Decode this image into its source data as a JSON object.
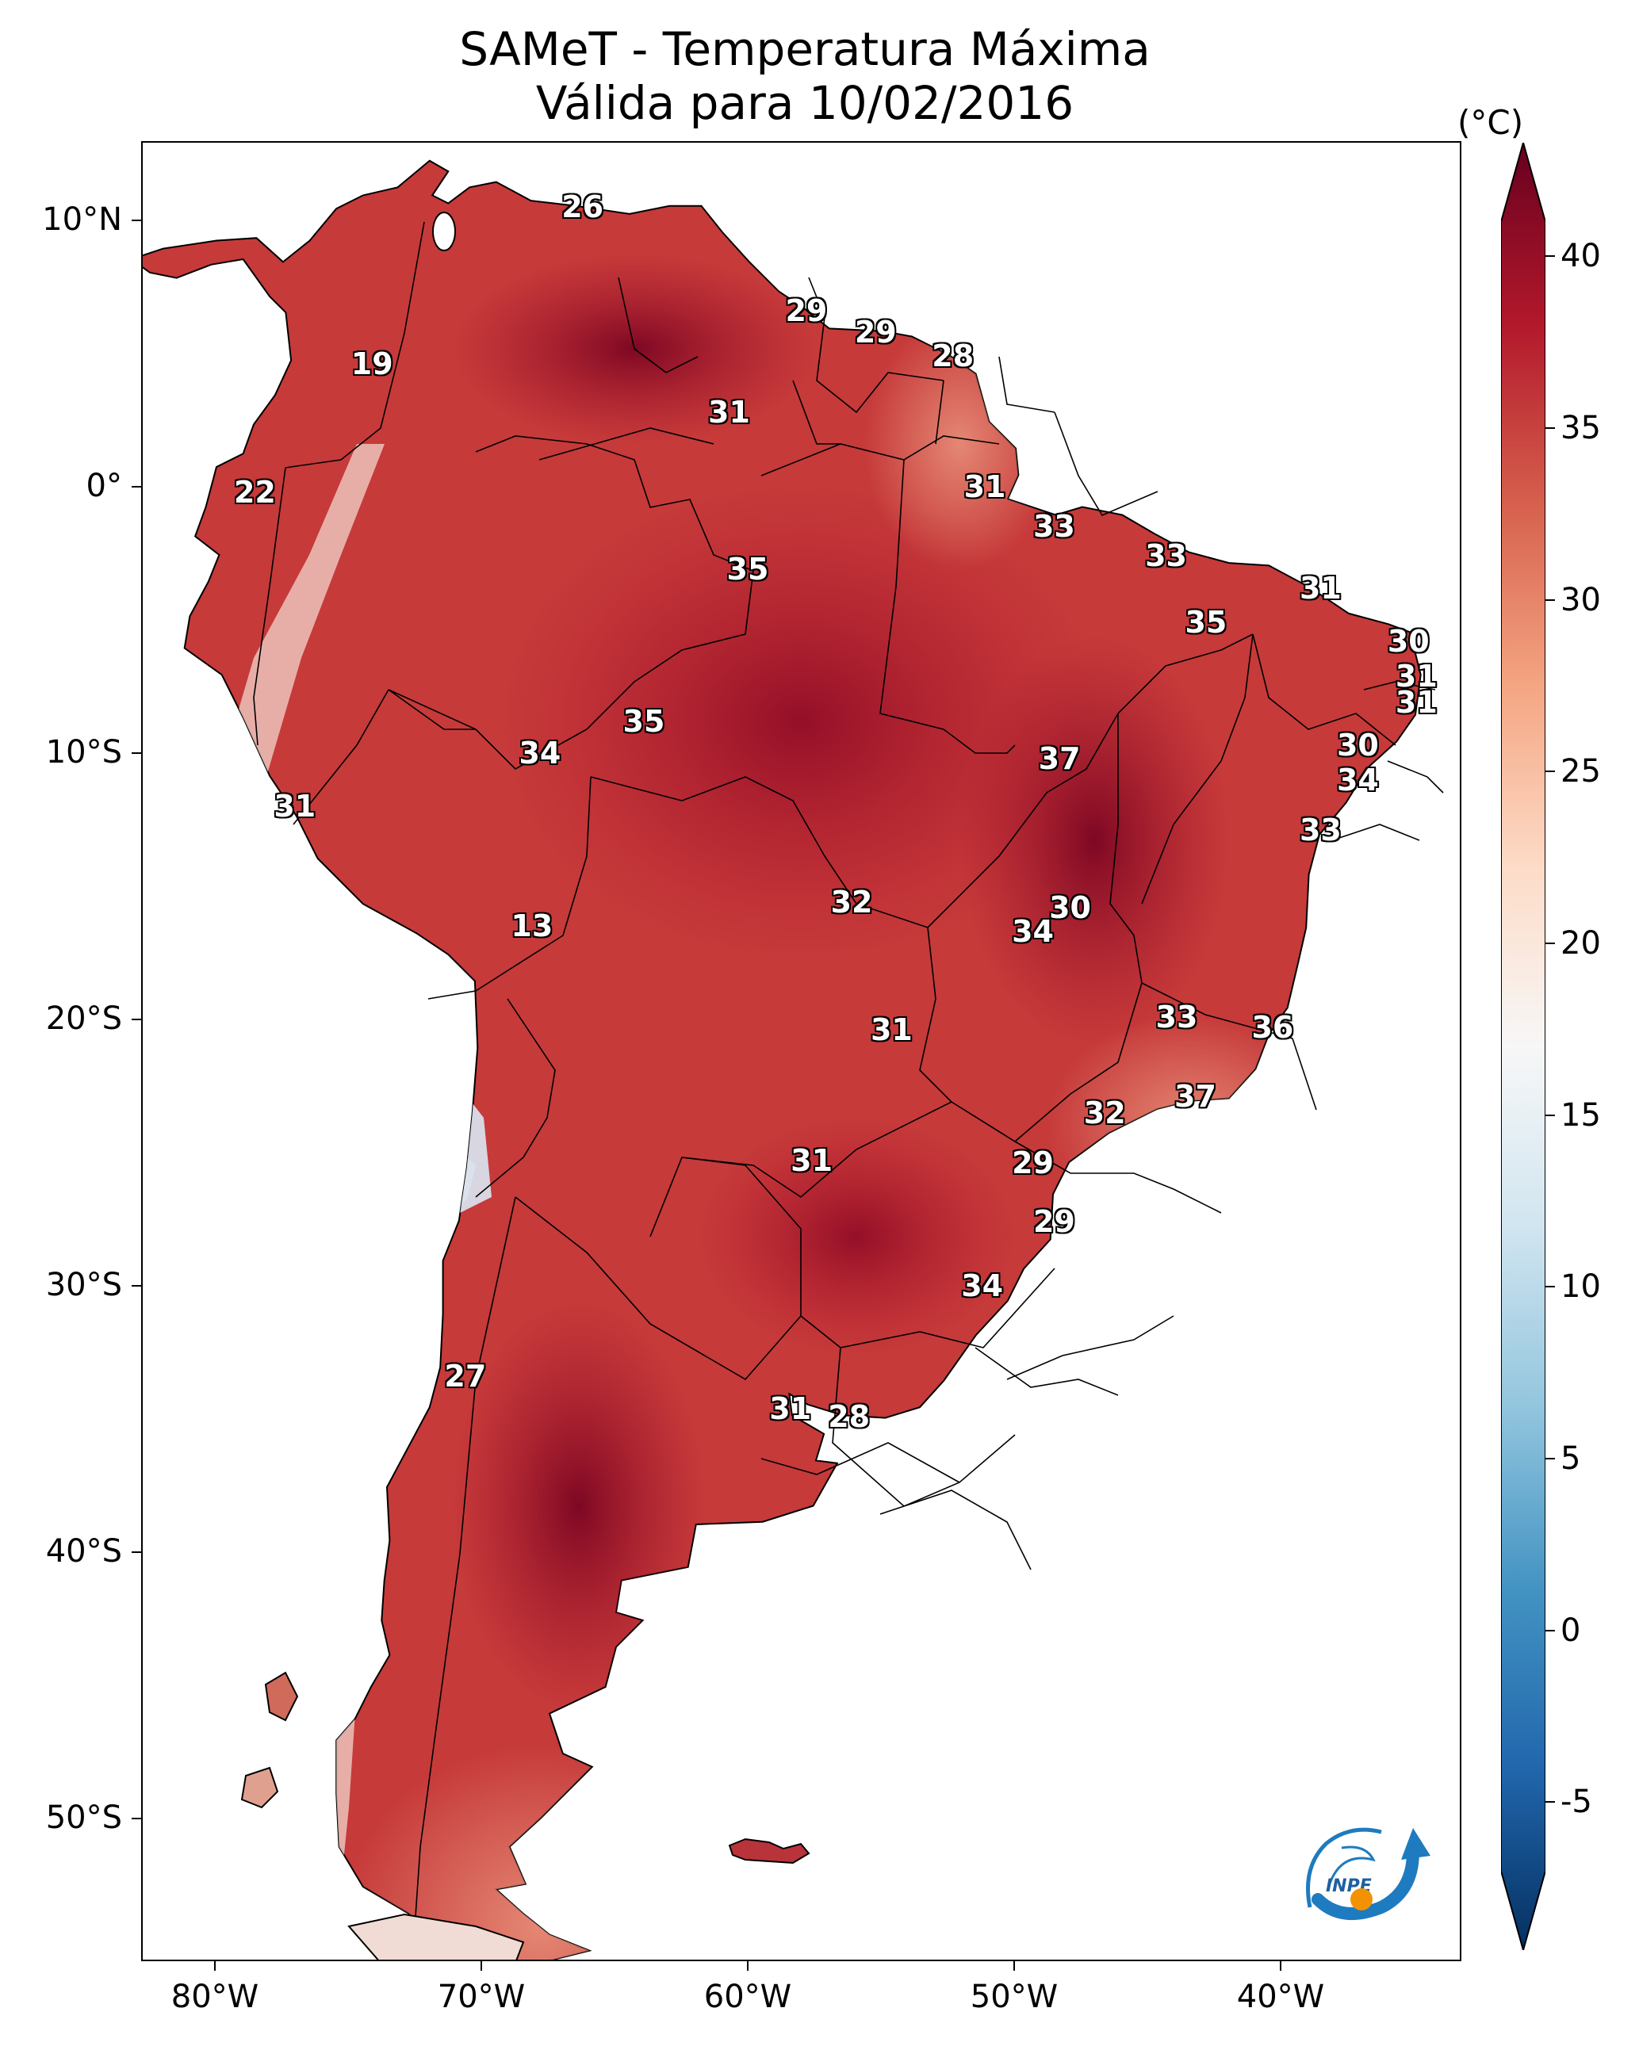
{
  "title": {
    "line1": "SAMeT - Temperatura Máxima",
    "line2": "Válida para 10/02/2016"
  },
  "axes": {
    "lat_labels": [
      "10°N",
      "0°",
      "10°S",
      "20°S",
      "30°S",
      "40°S",
      "50°S"
    ],
    "lon_labels": [
      "80°W",
      "70°W",
      "60°W",
      "50°W",
      "40°W"
    ]
  },
  "colorbar": {
    "unit": "(°C)",
    "ticks": [
      "40",
      "35",
      "30",
      "25",
      "20",
      "15",
      "10",
      "5",
      "0",
      "-5"
    ],
    "range": [
      -7,
      41
    ],
    "colors": [
      "#053061",
      "#2166ac",
      "#4393c3",
      "#92c5de",
      "#d1e5f0",
      "#f7f7f7",
      "#fddbc7",
      "#f4a582",
      "#d6604d",
      "#b2182b",
      "#67001f"
    ]
  },
  "point_values": [
    {
      "value": "26",
      "lon": -66.2,
      "lat": 10.5
    },
    {
      "value": "29",
      "lon": -57.8,
      "lat": 6.6
    },
    {
      "value": "29",
      "lon": -55.2,
      "lat": 5.8
    },
    {
      "value": "28",
      "lon": -52.3,
      "lat": 4.9
    },
    {
      "value": "19",
      "lon": -74.1,
      "lat": 4.6
    },
    {
      "value": "31",
      "lon": -60.7,
      "lat": 2.8
    },
    {
      "value": "31",
      "lon": -51.1,
      "lat": 0.0
    },
    {
      "value": "22",
      "lon": -78.5,
      "lat": -0.2
    },
    {
      "value": "33",
      "lon": -48.5,
      "lat": -1.5
    },
    {
      "value": "33",
      "lon": -44.3,
      "lat": -2.6
    },
    {
      "value": "35",
      "lon": -60.0,
      "lat": -3.1
    },
    {
      "value": "31",
      "lon": -38.5,
      "lat": -3.8
    },
    {
      "value": "35",
      "lon": -42.8,
      "lat": -5.1
    },
    {
      "value": "30",
      "lon": -35.2,
      "lat": -5.8
    },
    {
      "value": "31",
      "lon": -34.9,
      "lat": -7.1
    },
    {
      "value": "31",
      "lon": -34.9,
      "lat": -8.1
    },
    {
      "value": "35",
      "lon": -63.9,
      "lat": -8.8
    },
    {
      "value": "30",
      "lon": -37.1,
      "lat": -9.7
    },
    {
      "value": "34",
      "lon": -67.8,
      "lat": -10.0
    },
    {
      "value": "37",
      "lon": -48.3,
      "lat": -10.2
    },
    {
      "value": "34",
      "lon": -37.1,
      "lat": -11.0
    },
    {
      "value": "31",
      "lon": -77.0,
      "lat": -12.0
    },
    {
      "value": "33",
      "lon": -38.5,
      "lat": -12.9
    },
    {
      "value": "32",
      "lon": -56.1,
      "lat": -15.6
    },
    {
      "value": "30",
      "lon": -47.9,
      "lat": -15.8
    },
    {
      "value": "13",
      "lon": -68.1,
      "lat": -16.5
    },
    {
      "value": "34",
      "lon": -49.3,
      "lat": -16.7
    },
    {
      "value": "33",
      "lon": -43.9,
      "lat": -19.9
    },
    {
      "value": "36",
      "lon": -40.3,
      "lat": -20.3
    },
    {
      "value": "31",
      "lon": -54.6,
      "lat": -20.4
    },
    {
      "value": "37",
      "lon": -43.2,
      "lat": -22.9
    },
    {
      "value": "32",
      "lon": -46.6,
      "lat": -23.5
    },
    {
      "value": "29",
      "lon": -49.3,
      "lat": -25.4
    },
    {
      "value": "31",
      "lon": -57.6,
      "lat": -25.3
    },
    {
      "value": "29",
      "lon": -48.5,
      "lat": -27.6
    },
    {
      "value": "34",
      "lon": -51.2,
      "lat": -30.0
    },
    {
      "value": "27",
      "lon": -70.6,
      "lat": -33.4
    },
    {
      "value": "31",
      "lon": -58.4,
      "lat": -34.6
    },
    {
      "value": "28",
      "lon": -56.2,
      "lat": -34.9
    }
  ]
}
